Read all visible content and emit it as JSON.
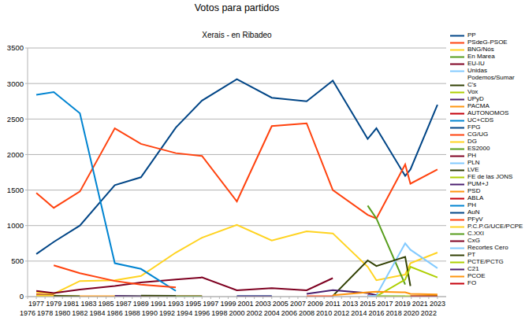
{
  "chart_data": {
    "type": "line",
    "title": "Votos para partidos",
    "subtitle": "Xerais - en Ribadeo",
    "x": [
      1977,
      1979,
      1982,
      1986,
      1989,
      1993,
      1996,
      2000,
      2004,
      2008,
      2011,
      2015,
      2016,
      2019.3,
      2019.9,
      2023
    ],
    "xlim": [
      1976,
      2024
    ],
    "xticks": [
      1976,
      1977,
      1978,
      1979,
      1980,
      1981,
      1982,
      1983,
      1984,
      1985,
      1986,
      1987,
      1988,
      1989,
      1990,
      1991,
      1992,
      1993,
      1994,
      1995,
      1996,
      1997,
      1998,
      1999,
      2000,
      2001,
      2002,
      2003,
      2004,
      2005,
      2006,
      2007,
      2008,
      2009,
      2010,
      2011,
      2012,
      2013,
      2014,
      2015,
      2016,
      2017,
      2018,
      2019,
      2020,
      2021,
      2022,
      2023
    ],
    "ylim": [
      0,
      3500
    ],
    "yticks": [
      0,
      500,
      1000,
      1500,
      2000,
      2500,
      3000,
      3500
    ],
    "grid": true,
    "legend": "right",
    "series": [
      {
        "name": "PP",
        "color": "#004586",
        "values": [
          600,
          770,
          1000,
          1570,
          1680,
          2380,
          2760,
          3060,
          2800,
          2750,
          3040,
          2220,
          2370,
          1700,
          1790,
          2700
        ]
      },
      {
        "name": "PSdeG-PSOE",
        "color": "#ff420e",
        "values": [
          1460,
          1250,
          1480,
          2370,
          2150,
          2020,
          1980,
          1340,
          2400,
          2440,
          1500,
          1150,
          1100,
          1860,
          1590,
          1790
        ]
      },
      {
        "name": "BNG/Nós",
        "color": "#ffd320",
        "values": [
          60,
          40,
          220,
          230,
          290,
          620,
          830,
          1010,
          790,
          920,
          890,
          420,
          230,
          310,
          470,
          620
        ]
      },
      {
        "name": "En Marea",
        "color": "#579d1c",
        "values": [
          null,
          null,
          null,
          null,
          null,
          null,
          null,
          null,
          null,
          null,
          null,
          1280,
          1100,
          170,
          null,
          null
        ]
      },
      {
        "name": "EU-IU",
        "color": "#7e0021",
        "values": [
          80,
          50,
          100,
          150,
          200,
          240,
          270,
          90,
          120,
          90,
          260,
          null,
          null,
          null,
          null,
          null
        ]
      },
      {
        "name": "Unidas Podemos/Sumar",
        "color": "#83caff",
        "values": [
          null,
          null,
          null,
          null,
          null,
          null,
          null,
          null,
          null,
          null,
          null,
          null,
          20,
          750,
          660,
          400
        ]
      },
      {
        "name": "C's",
        "color": "#314004",
        "values": [
          null,
          null,
          null,
          null,
          null,
          null,
          null,
          null,
          null,
          null,
          10,
          510,
          430,
          560,
          150,
          null
        ]
      },
      {
        "name": "Vox",
        "color": "#aecf00",
        "values": [
          null,
          null,
          null,
          null,
          null,
          null,
          null,
          null,
          null,
          null,
          null,
          null,
          5,
          240,
          420,
          270
        ]
      },
      {
        "name": "UPyD",
        "color": "#4b1f6f",
        "values": [
          null,
          null,
          null,
          null,
          null,
          null,
          null,
          null,
          null,
          40,
          90,
          50,
          20,
          null,
          null,
          null
        ]
      },
      {
        "name": "PACMA",
        "color": "#ff950e",
        "values": [
          null,
          null,
          null,
          null,
          null,
          null,
          null,
          null,
          null,
          null,
          20,
          60,
          70,
          60,
          40,
          30
        ]
      },
      {
        "name": "AUTONOMOS",
        "color": "#c5000b",
        "values": [
          30,
          20,
          null,
          null,
          null,
          null,
          null,
          null,
          null,
          null,
          null,
          null,
          null,
          null,
          null,
          null
        ]
      },
      {
        "name": "UC+CDS",
        "color": "#0084d1",
        "values": [
          2840,
          2880,
          2580,
          470,
          390,
          80,
          null,
          null,
          null,
          null,
          null,
          null,
          null,
          null,
          null,
          null
        ]
      },
      {
        "name": "FPG",
        "color": "#004586",
        "values": [
          20,
          15,
          null,
          null,
          null,
          null,
          null,
          null,
          null,
          null,
          null,
          null,
          null,
          null,
          null,
          null
        ]
      },
      {
        "name": "CG/UG",
        "color": "#ff420e",
        "values": [
          null,
          440,
          330,
          220,
          170,
          130,
          null,
          null,
          null,
          null,
          null,
          null,
          null,
          null,
          null,
          null
        ]
      },
      {
        "name": "DG",
        "color": "#ffd320",
        "values": [
          15,
          10,
          null,
          null,
          null,
          null,
          null,
          null,
          null,
          null,
          null,
          null,
          null,
          null,
          null,
          null
        ]
      },
      {
        "name": "ES2000",
        "color": "#579d1c",
        "values": [
          null,
          null,
          null,
          10,
          5,
          null,
          null,
          null,
          null,
          null,
          null,
          null,
          null,
          null,
          null,
          null
        ]
      },
      {
        "name": "PH",
        "color": "#7e0021",
        "values": [
          null,
          null,
          null,
          null,
          5,
          5,
          null,
          null,
          null,
          null,
          null,
          null,
          null,
          null,
          null,
          null
        ]
      },
      {
        "name": "PLN",
        "color": "#83caff",
        "values": [
          10,
          5,
          null,
          null,
          null,
          null,
          null,
          null,
          null,
          null,
          null,
          null,
          null,
          null,
          null,
          null
        ]
      },
      {
        "name": "LVE",
        "color": "#314004",
        "values": [
          null,
          null,
          null,
          null,
          15,
          10,
          null,
          null,
          null,
          null,
          null,
          null,
          null,
          null,
          null,
          null
        ]
      },
      {
        "name": "FE de las JONS",
        "color": "#aecf00",
        "values": [
          10,
          10,
          null,
          null,
          null,
          null,
          null,
          null,
          null,
          null,
          null,
          null,
          null,
          null,
          null,
          null
        ]
      },
      {
        "name": "PUM+J",
        "color": "#4b1f6f",
        "values": [
          null,
          null,
          null,
          10,
          5,
          null,
          null,
          null,
          null,
          null,
          null,
          null,
          null,
          null,
          null,
          null
        ]
      },
      {
        "name": "PSD",
        "color": "#ff950e",
        "values": [
          20,
          10,
          null,
          null,
          null,
          null,
          null,
          null,
          null,
          null,
          null,
          null,
          null,
          null,
          null,
          null
        ]
      },
      {
        "name": "ABLA",
        "color": "#c5000b",
        "values": [
          null,
          null,
          null,
          null,
          null,
          5,
          5,
          null,
          null,
          null,
          null,
          null,
          null,
          null,
          null,
          null
        ]
      },
      {
        "name": "PH",
        "color": "#0084d1",
        "values": [
          null,
          null,
          null,
          null,
          null,
          null,
          null,
          5,
          5,
          null,
          null,
          null,
          null,
          null,
          null,
          null
        ]
      },
      {
        "name": "AuN",
        "color": "#004586",
        "values": [
          10,
          5,
          null,
          null,
          null,
          null,
          null,
          null,
          null,
          null,
          null,
          null,
          null,
          null,
          null,
          null
        ]
      },
      {
        "name": "PFyV",
        "color": "#ff420e",
        "values": [
          null,
          null,
          null,
          null,
          null,
          null,
          null,
          null,
          null,
          5,
          5,
          null,
          null,
          null,
          null,
          null
        ]
      },
      {
        "name": "P.C.P.G/UCE/PCPE",
        "color": "#ffd320",
        "values": [
          10,
          15,
          5,
          null,
          null,
          null,
          null,
          null,
          null,
          null,
          null,
          null,
          null,
          null,
          null,
          null
        ]
      },
      {
        "name": "C.XXI",
        "color": "#579d1c",
        "values": [
          null,
          null,
          null,
          null,
          null,
          5,
          5,
          null,
          null,
          null,
          null,
          null,
          null,
          null,
          null,
          null
        ]
      },
      {
        "name": "CxG",
        "color": "#7e0021",
        "values": [
          null,
          null,
          null,
          null,
          null,
          null,
          null,
          null,
          null,
          null,
          null,
          20,
          10,
          null,
          null,
          null
        ]
      },
      {
        "name": "Recortes Cero",
        "color": "#83caff",
        "values": [
          null,
          null,
          null,
          null,
          null,
          null,
          null,
          null,
          null,
          null,
          null,
          10,
          10,
          5,
          null,
          null
        ]
      },
      {
        "name": "PT",
        "color": "#314004",
        "values": [
          null,
          10,
          5,
          null,
          null,
          null,
          null,
          null,
          null,
          null,
          null,
          null,
          null,
          null,
          null,
          null
        ]
      },
      {
        "name": "PCTE/PCTG",
        "color": "#aecf00",
        "values": [
          null,
          null,
          null,
          null,
          null,
          null,
          null,
          null,
          null,
          null,
          null,
          null,
          5,
          5,
          5,
          10
        ]
      },
      {
        "name": "C21",
        "color": "#4b1f6f",
        "values": [
          null,
          null,
          null,
          null,
          null,
          null,
          null,
          5,
          5,
          null,
          null,
          null,
          null,
          null,
          null,
          null
        ]
      },
      {
        "name": "PCOE",
        "color": "#ff950e",
        "values": [
          null,
          null,
          5,
          5,
          null,
          null,
          null,
          null,
          null,
          null,
          null,
          null,
          null,
          null,
          null,
          null
        ]
      },
      {
        "name": "FO",
        "color": "#c5000b",
        "values": [
          null,
          null,
          null,
          null,
          null,
          null,
          null,
          null,
          null,
          null,
          null,
          null,
          null,
          null,
          5,
          5
        ]
      }
    ]
  }
}
